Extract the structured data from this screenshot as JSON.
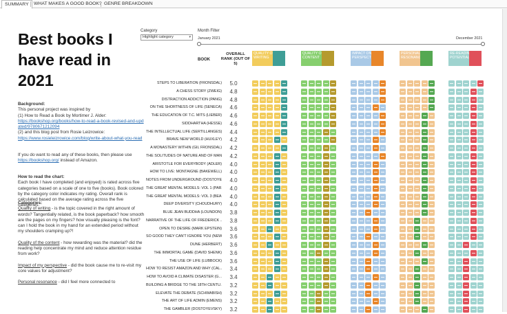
{
  "tabs": [
    "SUMMARY",
    "WHAT MAKES A GOOD BOOK?",
    "GENRE BREAKDOWN"
  ],
  "title": "Best books I have read in 2021",
  "sidebar": {
    "background_heading": "Background:",
    "background_p1": "This personal project was inspired by",
    "background_p2": "(1) How to Read a Book by Mortimer J. Alder:",
    "background_link1": "https://bookshop.org/books/how-to-read-a-book-revised-and-updated/9780671212094",
    "background_p3": "(2) and this blog post from Rosie Leizrowice:",
    "background_link2": "https://www.rosieleizrowice.com/blog/write-about-what-you-read",
    "amazon_p1": "If you do want to read any of these books, then please use",
    "amazon_link": "https://bookshop.org/",
    "amazon_p2": "instead of Amazon.",
    "howto_heading": "How to read the chart:",
    "howto_text": "Each book I have completed (and enjoyed) is rated across five categories based on a scale of one to five (books). Book colored by the category color indicates my rating. Overall rank is calculated based on the average rating across the five categories.",
    "categories_heading": "Categories:",
    "cat1_name": "Quality of writing",
    "cat1_text": " - is the topic covered in the right amount of words? Tangentially related, is the book paperback? how smooth are the pages on my fingers? how visually pleasing is the font? can I hold the book in my hand for an extended period without my shoulders cramping up?!",
    "cat2_name": "Quality of the content",
    "cat2_text": " - how rewarding was the material? did the reading help concentrate my mind and reduce attention residue from work?",
    "cat3_name": "Impact of my perspective",
    "cat3_text": " - did the book cause me to re-visit my core values for adjustment?",
    "cat4_name": "Personal resonance",
    "cat4_text": " - did I feel more connected to"
  },
  "controls": {
    "category_label": "Category",
    "category_value": "Highlight category",
    "month_label": "Month Filter",
    "month_start": "January 2021",
    "month_end": "December 2021",
    "month_start_fraction": 0,
    "month_end_fraction": 1
  },
  "headers": {
    "book": "BOOK",
    "rank": "OVERALL RANK (OUT OF 5)"
  },
  "categories": [
    {
      "name": "QUALITY OF WRITING",
      "light": "#f2cc5c",
      "dark": "#3f9e96"
    },
    {
      "name": "QUALITY OF CONTENT",
      "light": "#86cf6e",
      "dark": "#b59a2e"
    },
    {
      "name": "IMPACT ON MY PERSPECTIVE",
      "light": "#a9c9e6",
      "dark": "#e8862a"
    },
    {
      "name": "PERSONAL RESONANCE",
      "light": "#f1c58f",
      "dark": "#55a852"
    },
    {
      "name": "RE-READING POTENTIAL",
      "light": "#9fd3cf",
      "dark": "#e0505a"
    }
  ],
  "books": [
    {
      "title": "STEPS TO LIBERATION (FRONSDAL)",
      "score": "5.0",
      "ratings": [
        5,
        5,
        5,
        5,
        5
      ]
    },
    {
      "title": "A CHESS STORY (ZWEIG)",
      "score": "4.8",
      "ratings": [
        5,
        5,
        5,
        5,
        4
      ]
    },
    {
      "title": "DISTRACTION ADDICTION (PANG)",
      "score": "4.8",
      "ratings": [
        5,
        5,
        5,
        5,
        4
      ]
    },
    {
      "title": "ON THE SHORTNESS OF LIFE (SENECA)",
      "score": "4.6",
      "ratings": [
        5,
        5,
        4,
        5,
        4
      ]
    },
    {
      "title": "THE EDUCATION OF T.C. MITS (LIEBER)",
      "score": "4.6",
      "ratings": [
        5,
        5,
        5,
        4,
        4
      ]
    },
    {
      "title": "SIDDHARTHA (HESSE)",
      "score": "4.6",
      "ratings": [
        5,
        5,
        5,
        4,
        4
      ]
    },
    {
      "title": "THE INTELLECTUAL LIFE (SERTILLANGES)",
      "score": "4.4",
      "ratings": [
        5,
        4,
        5,
        4,
        4
      ]
    },
    {
      "title": "BRAVE NEW WORLD (HUXLEY)",
      "score": "4.2",
      "ratings": [
        4,
        5,
        4,
        4,
        4
      ]
    },
    {
      "title": "A MONASTERY WITHIN (GIL FRONSDAL)",
      "score": "4.2",
      "ratings": [
        5,
        4,
        4,
        4,
        4
      ]
    },
    {
      "title": "THE SOLITUDES OF NATURE AND OF MAN...",
      "score": "4.2",
      "ratings": [
        4,
        4,
        5,
        4,
        4
      ]
    },
    {
      "title": "ARISTOTLE FOR EVERYBODY (ADLER)",
      "score": "4.0",
      "ratings": [
        4,
        4,
        4,
        4,
        4
      ]
    },
    {
      "title": "HOW TO LIVE: MONTAIGNE (BAKEWELL)",
      "score": "4.0",
      "ratings": [
        4,
        4,
        4,
        4,
        4
      ]
    },
    {
      "title": "NOTES FROM UNDERGROUND (DOSTOYE...",
      "score": "4.0",
      "ratings": [
        4,
        4,
        4,
        4,
        4
      ]
    },
    {
      "title": "THE GREAT MENTAL MODELS: VOL 1 (PAR...",
      "score": "4.0",
      "ratings": [
        4,
        4,
        4,
        4,
        4
      ]
    },
    {
      "title": "THE GREAT MENTAL MODELS: VOL 3 (BEA...",
      "score": "4.0",
      "ratings": [
        4,
        4,
        4,
        4,
        4
      ]
    },
    {
      "title": "DEEP DIVERSITY (CHOUDHURY)",
      "score": "4.0",
      "ratings": [
        4,
        4,
        4,
        4,
        4
      ]
    },
    {
      "title": "BLUE JEAN BUDDHA (LOUNDON)",
      "score": "3.8",
      "ratings": [
        4,
        4,
        3,
        4,
        4
      ]
    },
    {
      "title": "NARRATIVE OF THE LIFE OF FREDERICK ...",
      "score": "3.8",
      "ratings": [
        4,
        4,
        4,
        3,
        4
      ]
    },
    {
      "title": "OPEN TO DESIRE (MARK EPSTEIN)",
      "score": "3.6",
      "ratings": [
        3,
        4,
        4,
        3,
        4
      ]
    },
    {
      "title": "SO GOOD THEY CAN'T IGNORE YOU (NEW...",
      "score": "3.6",
      "ratings": [
        4,
        4,
        3,
        3,
        4
      ]
    },
    {
      "title": "DUNE (HERBERT)",
      "score": "3.6",
      "ratings": [
        3,
        4,
        4,
        4,
        3
      ]
    },
    {
      "title": "THE IMMORTAL GAME (DAVID SHENK)",
      "score": "3.6",
      "ratings": [
        4,
        3,
        4,
        3,
        4
      ]
    },
    {
      "title": "THE USE OF LIFE (LUBBOCK)",
      "score": "3.6",
      "ratings": [
        4,
        4,
        3,
        4,
        3
      ]
    },
    {
      "title": "HOW TO RESIST AMAZON AND WHY (CAL...",
      "score": "3.4",
      "ratings": [
        4,
        4,
        3,
        3,
        3
      ]
    },
    {
      "title": "HOW TO AVOID A CLIMATE DISASTER (G...",
      "score": "3.4",
      "ratings": [
        3,
        4,
        4,
        3,
        3
      ]
    },
    {
      "title": "BUILDING A BRIDGE TO THE 18TH CENTU...",
      "score": "3.2",
      "ratings": [
        3,
        4,
        3,
        3,
        3
      ]
    },
    {
      "title": "ELEVATE THE DEBATE (SCHWABISH)",
      "score": "3.2",
      "ratings": [
        4,
        3,
        3,
        3,
        3
      ]
    },
    {
      "title": "THE ART OF LIFE ADMIN (EMENS)",
      "score": "3.2",
      "ratings": [
        3,
        3,
        4,
        3,
        3
      ]
    },
    {
      "title": "THE GAMBLER (DOSTOYEVSKY)",
      "score": "3.2",
      "ratings": [
        3,
        3,
        3,
        4,
        3
      ]
    }
  ]
}
